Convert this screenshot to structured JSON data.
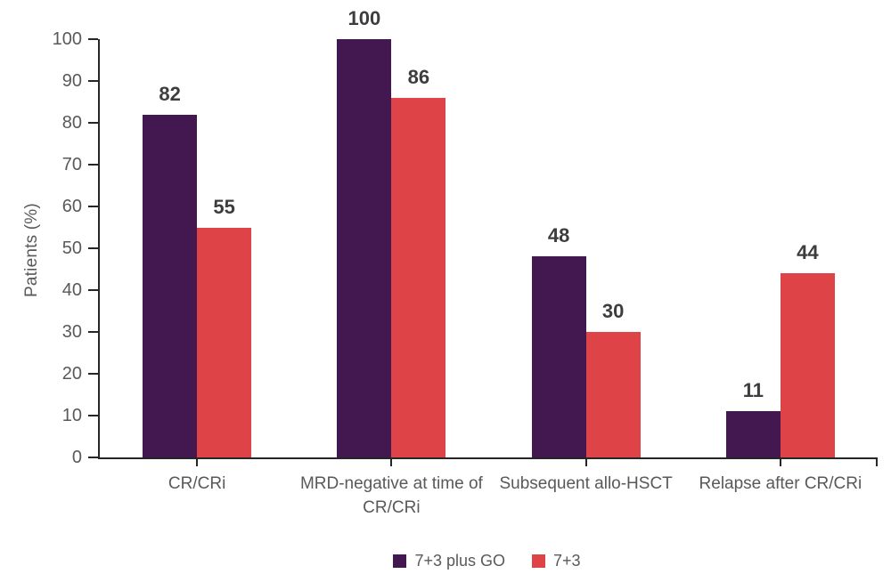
{
  "chart_data": {
    "type": "bar",
    "title": "",
    "categories": [
      "CR/CRi",
      "MRD-negative at time of CR/CRi",
      "Subsequent allo-HSCT",
      "Relapse after CR/CRi"
    ],
    "series": [
      {
        "name": "7+3 plus GO",
        "color": "#431850",
        "values": [
          82,
          100,
          48,
          11
        ]
      },
      {
        "name": "7+3",
        "color": "#dd4347",
        "values": [
          55,
          86,
          30,
          44
        ]
      }
    ],
    "xlabel": "",
    "ylabel": "Patients (%)",
    "ylim": [
      0,
      100
    ],
    "ytick_step": 10,
    "ytick_labels": [
      "0",
      "10",
      "20",
      "30",
      "40",
      "50",
      "60",
      "70",
      "80",
      "90",
      "100"
    ],
    "grid": false,
    "legend_position": "bottom",
    "value_labels": true,
    "axis_color": "#262626",
    "tick_label_color": "#595959",
    "value_label_color": "#3d3d3d"
  }
}
